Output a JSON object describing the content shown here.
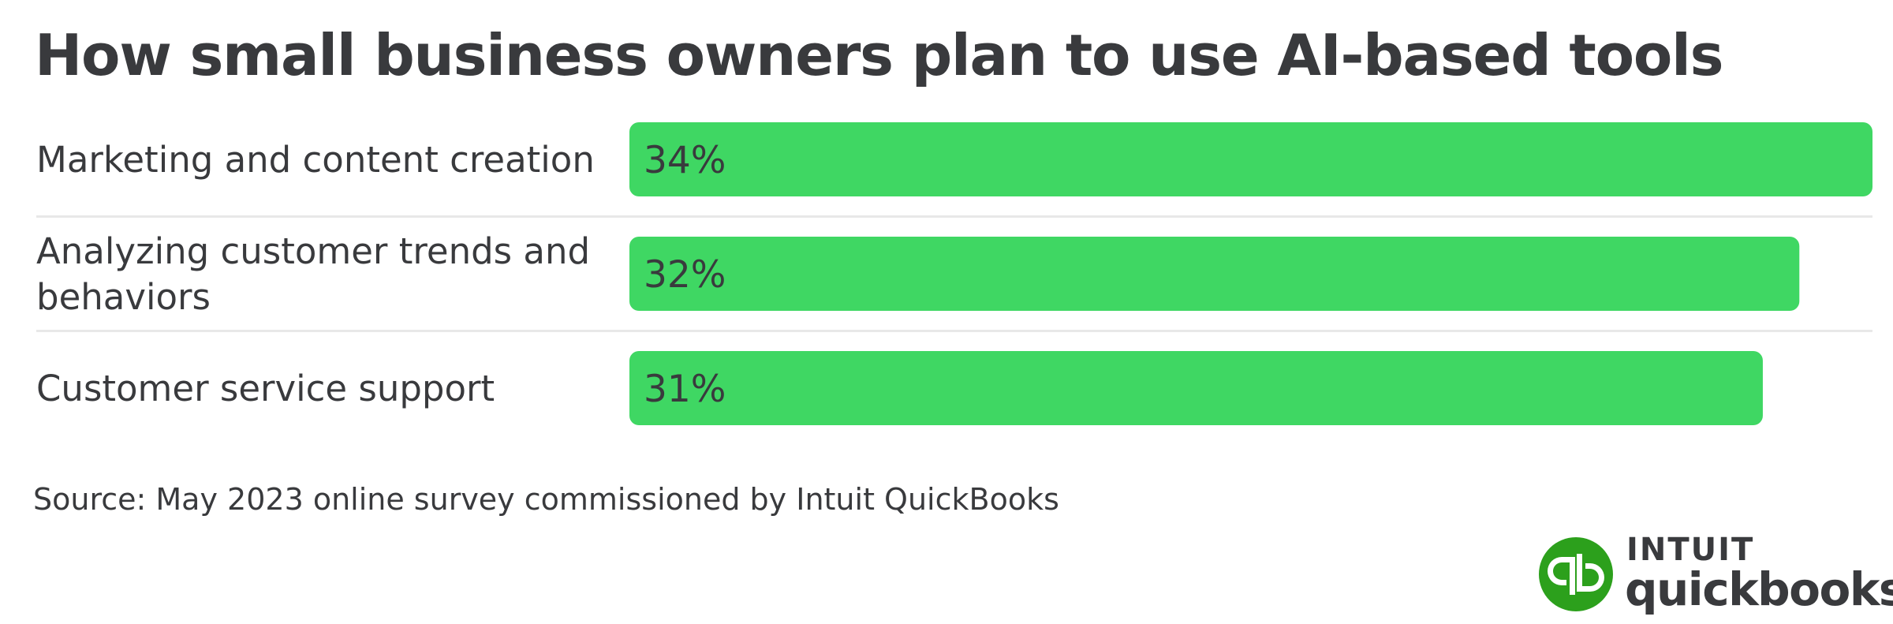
{
  "chart_data": {
    "type": "bar",
    "orientation": "horizontal",
    "title": "How small business owners plan to use AI-based tools",
    "categories": [
      "Marketing and content creation",
      "Analyzing customer trends and behaviors",
      "Customer service support"
    ],
    "category_lines": [
      [
        "Marketing and content creation"
      ],
      [
        "Analyzing customer trends and",
        "behaviors"
      ],
      [
        "Customer service support"
      ]
    ],
    "values": [
      34,
      32,
      31
    ],
    "value_labels": [
      "34%",
      "32%",
      "31%"
    ],
    "unit": "%",
    "xlim": [
      0,
      34
    ],
    "grid": false,
    "legend": "none",
    "bar_color": "#3fd763",
    "separator_color": "#e8e8e8"
  },
  "source": "Source: May 2023 online survey commissioned by Intuit QuickBooks",
  "logo": {
    "wordmark_top": "INTUIT",
    "wordmark_bottom": "quickbooks.",
    "mark_glyph": "qb",
    "mark_icon": "quickbooks-qb-icon",
    "color": "#2ca01c"
  }
}
